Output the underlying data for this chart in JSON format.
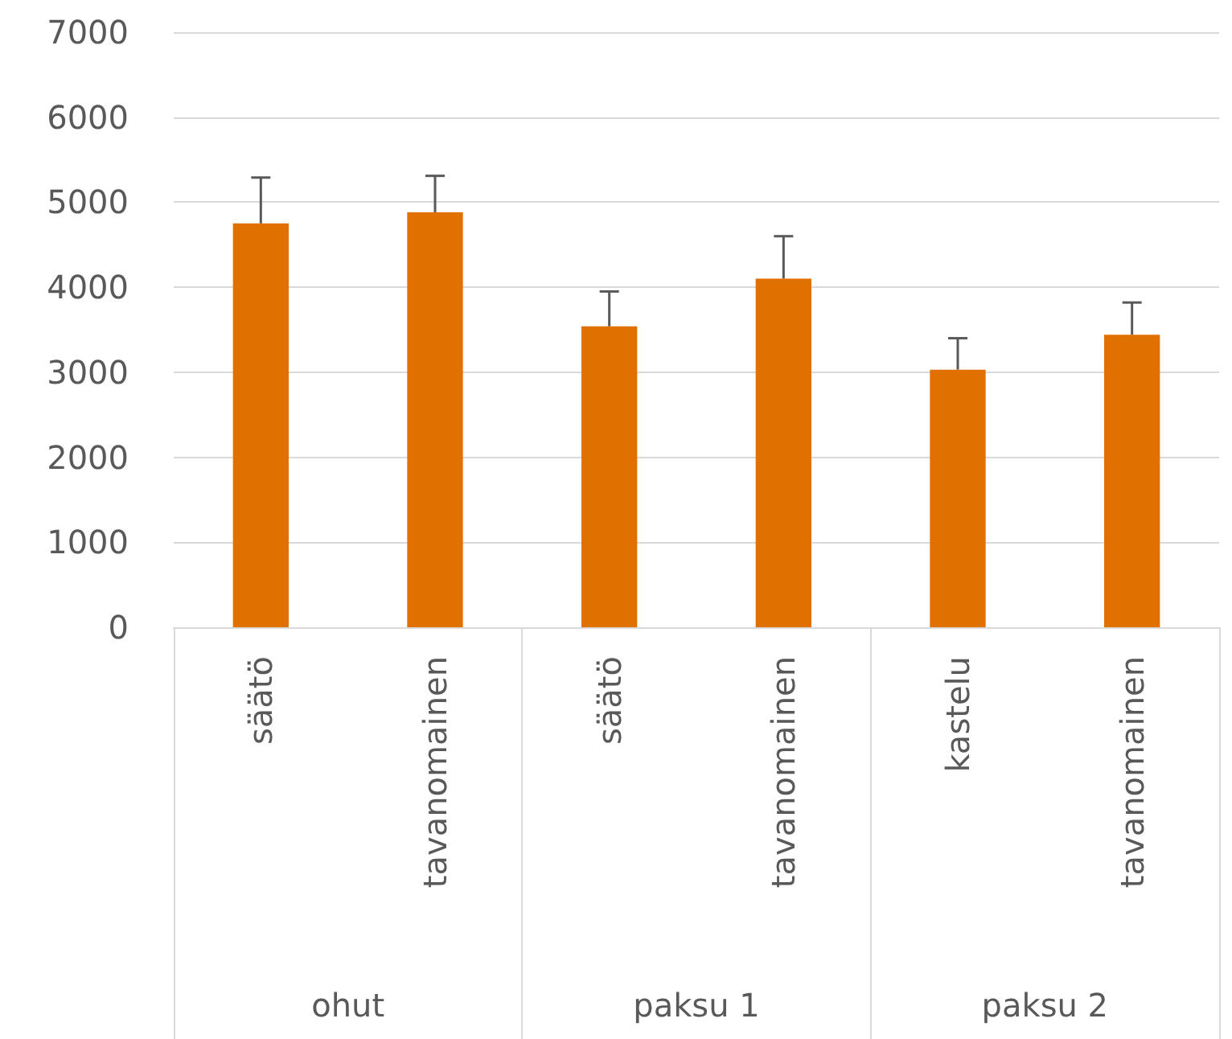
{
  "chart_data": {
    "type": "bar",
    "categories": [
      "säätö",
      "tavanomainen",
      "säätö",
      "tavanomainen",
      "kastelu",
      "tavanomainen"
    ],
    "series": [
      {
        "color": "#e07000",
        "values": [
          4750,
          4880,
          3540,
          4100,
          3030,
          3440
        ],
        "errors": [
          [
            4750,
            5290
          ],
          [
            4880,
            5310
          ],
          [
            3540,
            3950
          ],
          [
            4100,
            4600
          ],
          [
            3030,
            3400
          ],
          [
            3440,
            3820
          ]
        ]
      }
    ],
    "annotations": [
      "ohut",
      "paksu 1",
      "paksu 2"
    ],
    "ylim": [
      0,
      7000
    ],
    "yticks": [
      0,
      1000,
      2000,
      3000,
      4000,
      5000,
      6000,
      7000
    ],
    "grid": "y"
  }
}
